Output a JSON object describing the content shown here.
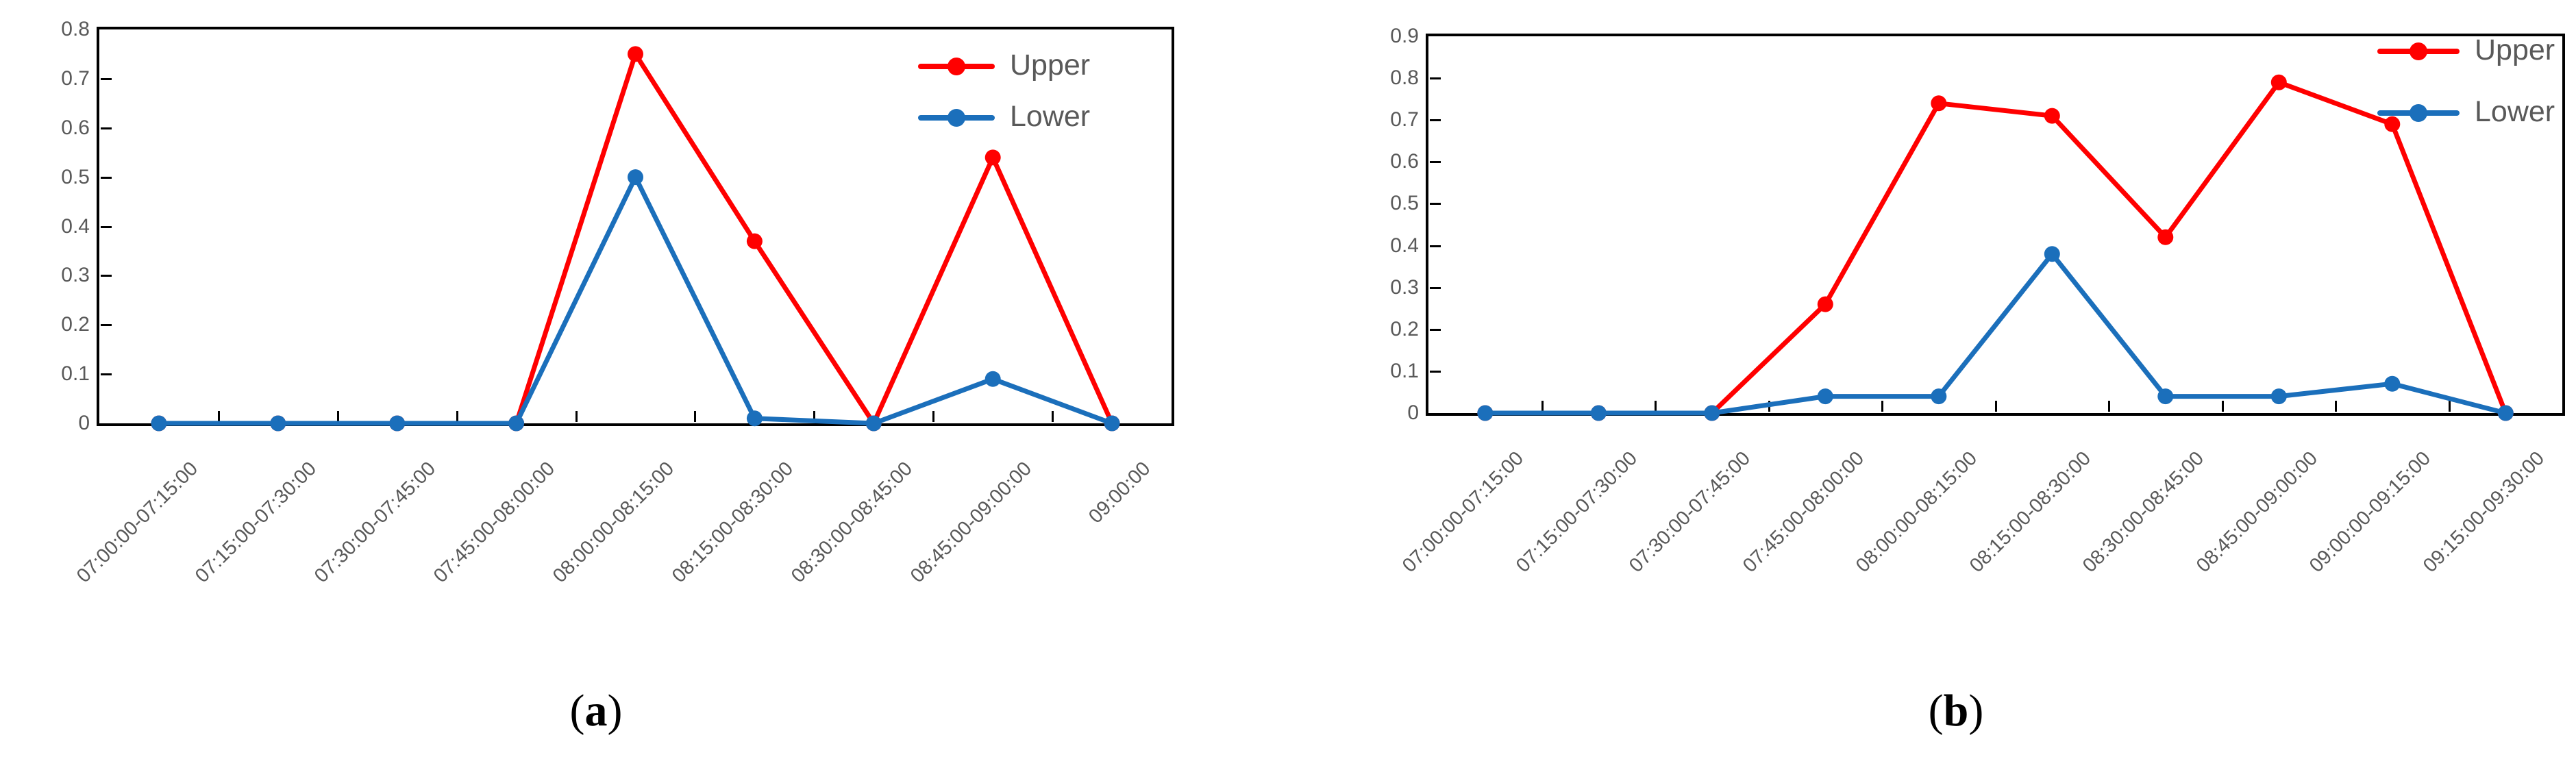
{
  "figure": {
    "captions": [
      {
        "open": "(",
        "letter": "a",
        "close": ")"
      },
      {
        "open": "(",
        "letter": "b",
        "close": ")"
      }
    ]
  },
  "style": {
    "background": "#ffffff",
    "axis_color": "#000000",
    "tick_label_color": "#595959",
    "legend_text_color": "#595959",
    "upper_color": "#ff0000",
    "lower_color": "#1b6fbb"
  },
  "chart_data": [
    {
      "type": "line",
      "title": "(a)",
      "xlabel": "",
      "ylabel": "",
      "grid": false,
      "marker": "circle",
      "legend_position": "top-right-inside",
      "x_tick_label_rotation": 45,
      "ylim": [
        0,
        0.8
      ],
      "yticks": [
        "0",
        "0.1",
        "0.2",
        "0.3",
        "0.4",
        "0.5",
        "0.6",
        "0.7",
        "0.8"
      ],
      "categories": [
        "07:00:00-07:15:00",
        "07:15:00-07:30:00",
        "07:30:00-07:45:00",
        "07:45:00-08:00:00",
        "08:00:00-08:15:00",
        "08:15:00-08:30:00",
        "08:30:00-08:45:00",
        "08:45:00-09:00:00",
        "09:00:00"
      ],
      "series": [
        {
          "name": "Upper",
          "color": "#ff0000",
          "values": [
            0,
            0,
            0,
            0,
            0.75,
            0.37,
            0,
            0.54,
            0
          ]
        },
        {
          "name": "Lower",
          "color": "#1b6fbb",
          "values": [
            0,
            0,
            0,
            0,
            0.5,
            0.01,
            0,
            0.09,
            0
          ]
        }
      ]
    },
    {
      "type": "line",
      "title": "(b)",
      "xlabel": "",
      "ylabel": "",
      "grid": false,
      "marker": "circle",
      "legend_position": "top-right-inside",
      "x_tick_label_rotation": 45,
      "ylim": [
        0,
        0.9
      ],
      "yticks": [
        "0",
        "0.1",
        "0.2",
        "0.3",
        "0.4",
        "0.5",
        "0.6",
        "0.7",
        "0.8",
        "0.9"
      ],
      "categories": [
        "07:00:00-07:15:00",
        "07:15:00-07:30:00",
        "07:30:00-07:45:00",
        "07:45:00-08:00:00",
        "08:00:00-08:15:00",
        "08:15:00-08:30:00",
        "08:30:00-08:45:00",
        "08:45:00-09:00:00",
        "09:00:00-09:15:00",
        "09:15:00-09:30:00"
      ],
      "series": [
        {
          "name": "Upper",
          "color": "#ff0000",
          "values": [
            0,
            0,
            0,
            0.26,
            0.74,
            0.71,
            0.42,
            0.79,
            0.69,
            0
          ]
        },
        {
          "name": "Lower",
          "color": "#1b6fbb",
          "values": [
            0,
            0,
            0,
            0.04,
            0.04,
            0.38,
            0.04,
            0.04,
            0.07,
            0
          ]
        }
      ]
    }
  ]
}
